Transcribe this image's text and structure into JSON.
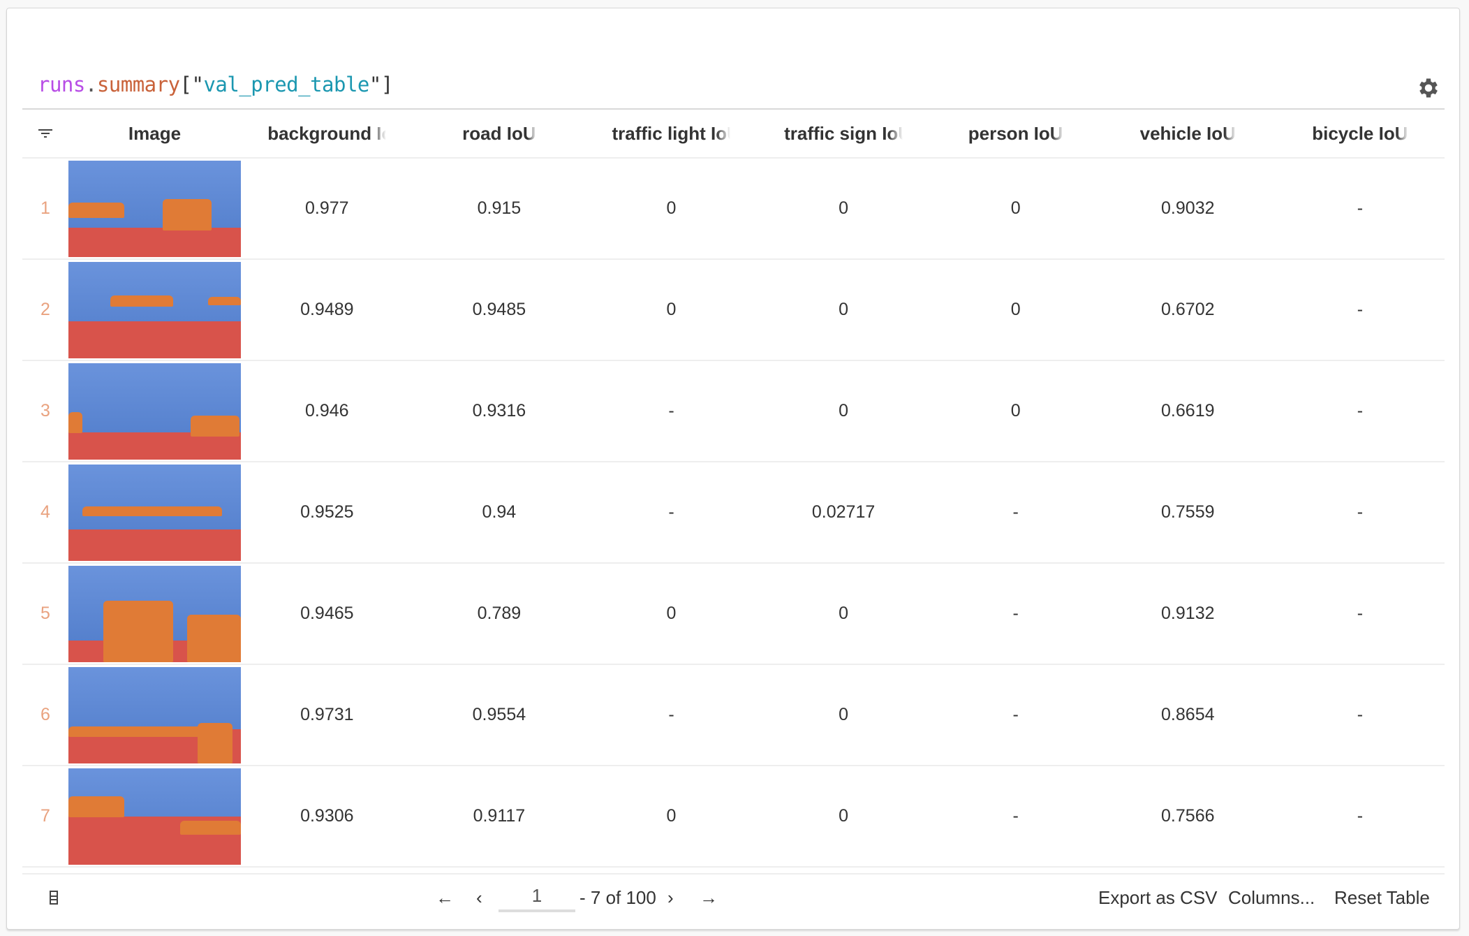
{
  "title": {
    "obj": "runs",
    "dot": ".",
    "attr": "summary",
    "open": "[\"",
    "key": "val_pred_table",
    "close": "\"]"
  },
  "icons": {
    "settings": "gear-icon",
    "filter": "filter-icon",
    "row_height": "row-height-icon"
  },
  "columns": [
    "Image",
    "background IoU",
    "road IoU",
    "traffic light IoU",
    "traffic sign IoU",
    "person IoU",
    "vehicle IoU",
    "bicycle IoU"
  ],
  "rows": [
    {
      "index": "1",
      "values": [
        "0.977",
        "0.915",
        "0",
        "0",
        "0",
        "0.9032",
        "-"
      ]
    },
    {
      "index": "2",
      "values": [
        "0.9489",
        "0.9485",
        "0",
        "0",
        "0",
        "0.6702",
        "-"
      ]
    },
    {
      "index": "3",
      "values": [
        "0.946",
        "0.9316",
        "-",
        "0",
        "0",
        "0.6619",
        "-"
      ]
    },
    {
      "index": "4",
      "values": [
        "0.9525",
        "0.94",
        "-",
        "0.02717",
        "-",
        "0.7559",
        "-"
      ]
    },
    {
      "index": "5",
      "values": [
        "0.9465",
        "0.789",
        "0",
        "0",
        "-",
        "0.9132",
        "-"
      ]
    },
    {
      "index": "6",
      "values": [
        "0.9731",
        "0.9554",
        "-",
        "0",
        "-",
        "0.8654",
        "-"
      ]
    },
    {
      "index": "7",
      "values": [
        "0.9306",
        "0.9117",
        "0",
        "0",
        "-",
        "0.7566",
        "-"
      ]
    }
  ],
  "pagination": {
    "first": "←",
    "prev": "‹",
    "page": "1",
    "range": "- 7 of 100",
    "next": "›",
    "last": "→"
  },
  "actions": {
    "export": "Export as CSV",
    "columns": "Columns...",
    "reset": "Reset Table"
  },
  "colors": {
    "background_mask": "#5b86d6",
    "road_mask": "#d8534b",
    "vehicle_mask": "#e07b36",
    "index": "#e9a27f"
  }
}
